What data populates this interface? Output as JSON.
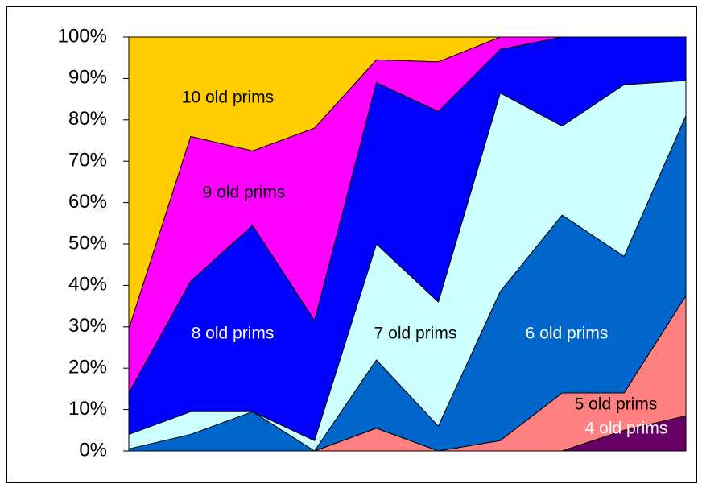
{
  "chart_data": {
    "type": "stacked_area_100",
    "categories": [
      null,
      null,
      null,
      null,
      null,
      null,
      null,
      null,
      null,
      null
    ],
    "series": [
      {
        "name": "4 old prims",
        "color": "#660066",
        "label_color": "#ffffff",
        "values": [
          0,
          0,
          0,
          0,
          0,
          0,
          0,
          0,
          5,
          8.5
        ]
      },
      {
        "name": "5 old prims",
        "color": "#ff8080",
        "label_color": "#000000",
        "values": [
          0,
          0,
          0,
          0,
          5.5,
          0,
          2.5,
          14,
          9,
          29
        ]
      },
      {
        "name": "6 old prims",
        "color": "#0066cc",
        "label_color": "#ffffff",
        "values": [
          0.5,
          4,
          9.5,
          0,
          16.5,
          6,
          36,
          43,
          33,
          43.5
        ]
      },
      {
        "name": "7 old prims",
        "color": "#ccffff",
        "label_color": "#000000",
        "values": [
          3.5,
          5.5,
          0,
          2.5,
          28,
          30,
          48,
          21.5,
          41.5,
          8.5
        ]
      },
      {
        "name": "8 old prims",
        "color": "#0000ff",
        "label_color": "#ffffff",
        "values": [
          10,
          31.5,
          45,
          29,
          39,
          46,
          10.5,
          21.5,
          11.5,
          10.5
        ]
      },
      {
        "name": "9 old prims",
        "color": "#ff00ff",
        "label_color": "#000000",
        "values": [
          15.5,
          35,
          18,
          46.5,
          5.5,
          12,
          3,
          0,
          0,
          0
        ]
      },
      {
        "name": "10 old prims",
        "color": "#ffcc00",
        "label_color": "#000000",
        "values": [
          70.5,
          24,
          27.5,
          22,
          5.5,
          6,
          0,
          0,
          0,
          0
        ]
      }
    ],
    "ylim": [
      0,
      100
    ],
    "yticks": [
      {
        "value": 0,
        "label": "0%"
      },
      {
        "value": 10,
        "label": "10%"
      },
      {
        "value": 20,
        "label": "20%"
      },
      {
        "value": 30,
        "label": "30%"
      },
      {
        "value": 40,
        "label": "40%"
      },
      {
        "value": 50,
        "label": "50%"
      },
      {
        "value": 60,
        "label": "60%"
      },
      {
        "value": 70,
        "label": "70%"
      },
      {
        "value": 80,
        "label": "80%"
      },
      {
        "value": 90,
        "label": "90%"
      },
      {
        "value": 100,
        "label": "100%"
      }
    ]
  }
}
